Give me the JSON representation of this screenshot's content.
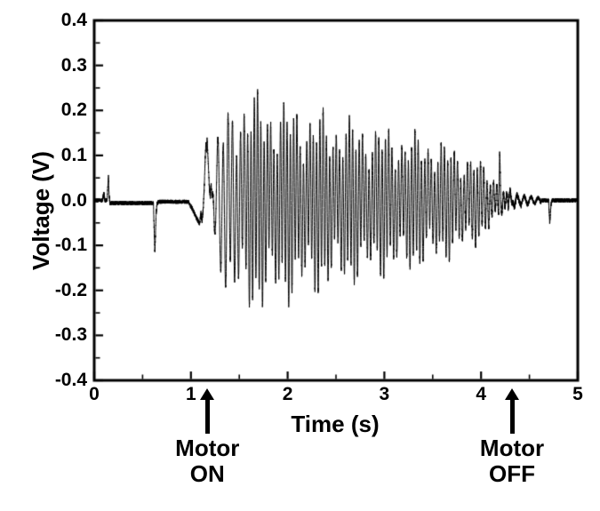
{
  "chart_data": {
    "type": "line",
    "title": "",
    "xlabel": "Time (s)",
    "ylabel": "Voltage (V)",
    "xlim": [
      0,
      5
    ],
    "ylim": [
      -0.4,
      0.4
    ],
    "grid": false,
    "legend": "none",
    "line_color": "#000000",
    "axis_color": "#000000",
    "x_ticks": [
      {
        "label": "0",
        "value": 0
      },
      {
        "label": "1",
        "value": 1
      },
      {
        "label": "2",
        "value": 2
      },
      {
        "label": "3",
        "value": 3
      },
      {
        "label": "4",
        "value": 4
      },
      {
        "label": "5",
        "value": 5
      }
    ],
    "x_minor_step": 0.5,
    "y_ticks": [
      {
        "label": "0.4",
        "value": 0.4
      },
      {
        "label": "0.3",
        "value": 0.3
      },
      {
        "label": "0.2",
        "value": 0.2
      },
      {
        "label": "0.1",
        "value": 0.1
      },
      {
        "label": "0.0",
        "value": 0.0
      },
      {
        "label": "-0.1",
        "value": -0.1
      },
      {
        "label": "-0.2",
        "value": -0.2
      },
      {
        "label": "-0.3",
        "value": -0.3
      },
      {
        "label": "-0.4",
        "value": -0.4
      }
    ],
    "y_minor_step": 0.05,
    "annotations": {
      "motor_on": {
        "line1": "Motor",
        "line2": "ON",
        "time_s": 1.17
      },
      "motor_off": {
        "line1": "Motor",
        "line2": "OFF",
        "time_s": 4.32
      }
    },
    "signal": {
      "sample_step_s": 0.0005,
      "baseline_noise_v": 0.0045,
      "baseline_offsets": [
        [
          0,
          0
        ],
        [
          0.15,
          -0.006
        ],
        [
          0.66,
          -0.003
        ],
        [
          1.0,
          0
        ]
      ],
      "carrier": {
        "f_start_hz": 15,
        "f_hz": 29.5,
        "ramp_t0_s": 1.22,
        "ramp_t1_s": 1.62
      },
      "beat": {
        "f_hz": 3.05,
        "depth": 0.34,
        "phase": 0.8
      },
      "inner_component": {
        "f_hz": 7.3,
        "frac": 0.18
      },
      "neg_asymmetry": 1.05,
      "envelope_points": [
        [
          1.215,
          0
        ],
        [
          1.24,
          0.13
        ],
        [
          1.32,
          0.19
        ],
        [
          1.45,
          0.235
        ],
        [
          1.55,
          0.26
        ],
        [
          1.75,
          0.245
        ],
        [
          1.9,
          0.235
        ],
        [
          2.4,
          0.205
        ],
        [
          2.9,
          0.175
        ],
        [
          3.4,
          0.152
        ],
        [
          3.7,
          0.13
        ],
        [
          3.95,
          0.1
        ],
        [
          4.08,
          0.07
        ],
        [
          4.18,
          0.048
        ],
        [
          4.25,
          0.02
        ],
        [
          4.33,
          0.008
        ],
        [
          4.42,
          0
        ]
      ],
      "transient_segments": [
        [
          [
            0.085,
            0
          ],
          [
            0.1,
            0.016
          ],
          [
            0.112,
            0
          ]
        ],
        [
          [
            0.132,
            0
          ],
          [
            0.147,
            0.052
          ],
          [
            0.154,
            0.018
          ],
          [
            0.162,
            0
          ]
        ],
        [
          [
            0.612,
            0
          ],
          [
            0.627,
            -0.112
          ],
          [
            0.64,
            -0.025
          ],
          [
            0.65,
            0
          ]
        ],
        [
          [
            0.975,
            0
          ],
          [
            1.05,
            -0.036
          ],
          [
            1.09,
            -0.052
          ],
          [
            1.103,
            -0.027
          ],
          [
            1.115,
            -0.048
          ],
          [
            1.128,
            -0.015
          ],
          [
            1.138,
            0.03
          ],
          [
            1.148,
            0.095
          ],
          [
            1.155,
            0.128
          ],
          [
            1.161,
            0.108
          ],
          [
            1.167,
            0.138
          ],
          [
            1.178,
            0.09
          ],
          [
            1.19,
            0.03
          ],
          [
            1.2,
            0.008
          ],
          [
            1.209,
            0.04
          ],
          [
            1.218,
            0
          ]
        ],
        [
          [
            4.182,
            0
          ],
          [
            4.192,
            0.1
          ],
          [
            4.203,
            0
          ]
        ],
        [
          [
            4.698,
            0
          ],
          [
            4.71,
            -0.05
          ],
          [
            4.722,
            -0.012
          ],
          [
            4.73,
            0
          ]
        ]
      ],
      "tail_wobble": {
        "t0": 4.28,
        "t1": 4.62,
        "amp": 0.013,
        "f_hz": 14
      },
      "peak_amplitude_v": 0.26,
      "motor_on_s": 1.17,
      "motor_off_s": 4.32
    }
  }
}
